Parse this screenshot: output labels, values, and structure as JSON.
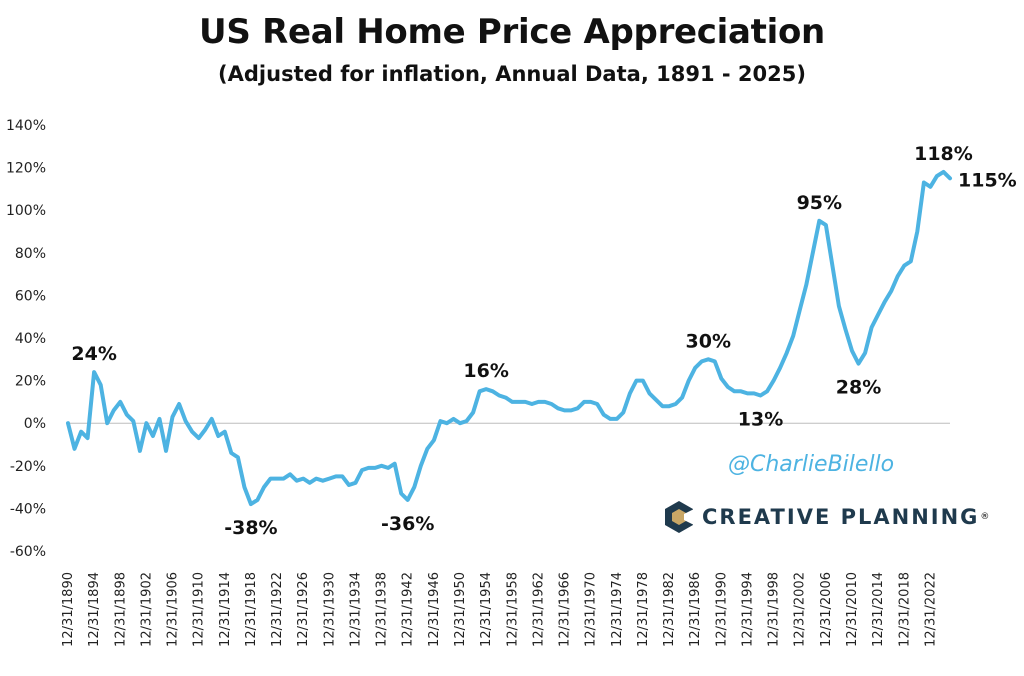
{
  "colors": {
    "line": "#4db3e2",
    "text": "#111111",
    "watermark": "#4db3e2",
    "brand_text": "#1f3a4d",
    "brand_gold": "#c9a766"
  },
  "watermark": "@CharlieBilello",
  "brand": {
    "name": "CREATIVE PLANNING",
    "trademark": "®",
    "logo_icon": "creative-planning-logo-icon"
  },
  "chart_data": {
    "type": "line",
    "title": "US Real Home Price Appreciation",
    "subtitle": "(Adjusted for inflation, Annual Data, 1891 - 2025)",
    "xlabel": "",
    "ylabel": "",
    "ylim": [
      -60,
      140
    ],
    "xlim": [
      1890,
      2025
    ],
    "grid": false,
    "y_ticks": [
      {
        "value": -60,
        "label": "-60%"
      },
      {
        "value": -40,
        "label": "-40%"
      },
      {
        "value": -20,
        "label": "-20%"
      },
      {
        "value": 0,
        "label": "0%"
      },
      {
        "value": 20,
        "label": "20%"
      },
      {
        "value": 40,
        "label": "40%"
      },
      {
        "value": 60,
        "label": "60%"
      },
      {
        "value": 80,
        "label": "80%"
      },
      {
        "value": 100,
        "label": "100%"
      },
      {
        "value": 120,
        "label": "120%"
      },
      {
        "value": 140,
        "label": "140%"
      }
    ],
    "x_ticks": [
      {
        "year": 1890,
        "label": "12/31/1890"
      },
      {
        "year": 1894,
        "label": "12/31/1894"
      },
      {
        "year": 1898,
        "label": "12/31/1898"
      },
      {
        "year": 1902,
        "label": "12/31/1902"
      },
      {
        "year": 1906,
        "label": "12/31/1906"
      },
      {
        "year": 1910,
        "label": "12/31/1910"
      },
      {
        "year": 1914,
        "label": "12/31/1914"
      },
      {
        "year": 1918,
        "label": "12/31/1918"
      },
      {
        "year": 1922,
        "label": "12/31/1922"
      },
      {
        "year": 1926,
        "label": "12/31/1926"
      },
      {
        "year": 1930,
        "label": "12/31/1930"
      },
      {
        "year": 1934,
        "label": "12/31/1934"
      },
      {
        "year": 1938,
        "label": "12/31/1938"
      },
      {
        "year": 1942,
        "label": "12/31/1942"
      },
      {
        "year": 1946,
        "label": "12/31/1946"
      },
      {
        "year": 1950,
        "label": "12/31/1950"
      },
      {
        "year": 1954,
        "label": "12/31/1954"
      },
      {
        "year": 1958,
        "label": "12/31/1958"
      },
      {
        "year": 1962,
        "label": "12/31/1962"
      },
      {
        "year": 1966,
        "label": "12/31/1966"
      },
      {
        "year": 1970,
        "label": "12/31/1970"
      },
      {
        "year": 1974,
        "label": "12/31/1974"
      },
      {
        "year": 1978,
        "label": "12/31/1978"
      },
      {
        "year": 1982,
        "label": "12/31/1982"
      },
      {
        "year": 1986,
        "label": "12/31/1986"
      },
      {
        "year": 1990,
        "label": "12/31/1990"
      },
      {
        "year": 1994,
        "label": "12/31/1994"
      },
      {
        "year": 1998,
        "label": "12/31/1998"
      },
      {
        "year": 2002,
        "label": "12/31/2002"
      },
      {
        "year": 2006,
        "label": "12/31/2006"
      },
      {
        "year": 2010,
        "label": "12/31/2010"
      },
      {
        "year": 2014,
        "label": "12/31/2014"
      },
      {
        "year": 2018,
        "label": "12/31/2018"
      },
      {
        "year": 2022,
        "label": "12/31/2022"
      }
    ],
    "series": [
      {
        "name": "US Real Home Price Appreciation",
        "points": [
          [
            1890,
            0
          ],
          [
            1891,
            -12
          ],
          [
            1892,
            -4
          ],
          [
            1893,
            -7
          ],
          [
            1894,
            24
          ],
          [
            1895,
            18
          ],
          [
            1896,
            0
          ],
          [
            1897,
            6
          ],
          [
            1898,
            10
          ],
          [
            1899,
            4
          ],
          [
            1900,
            1
          ],
          [
            1901,
            -13
          ],
          [
            1902,
            0
          ],
          [
            1903,
            -6
          ],
          [
            1904,
            2
          ],
          [
            1905,
            -13
          ],
          [
            1906,
            3
          ],
          [
            1907,
            9
          ],
          [
            1908,
            1
          ],
          [
            1909,
            -4
          ],
          [
            1910,
            -7
          ],
          [
            1911,
            -3
          ],
          [
            1912,
            2
          ],
          [
            1913,
            -6
          ],
          [
            1914,
            -4
          ],
          [
            1915,
            -14
          ],
          [
            1916,
            -16
          ],
          [
            1917,
            -30
          ],
          [
            1918,
            -38
          ],
          [
            1919,
            -36
          ],
          [
            1920,
            -30
          ],
          [
            1921,
            -26
          ],
          [
            1922,
            -26
          ],
          [
            1923,
            -26
          ],
          [
            1924,
            -24
          ],
          [
            1925,
            -27
          ],
          [
            1926,
            -26
          ],
          [
            1927,
            -28
          ],
          [
            1928,
            -26
          ],
          [
            1929,
            -27
          ],
          [
            1930,
            -26
          ],
          [
            1931,
            -25
          ],
          [
            1932,
            -25
          ],
          [
            1933,
            -29
          ],
          [
            1934,
            -28
          ],
          [
            1935,
            -22
          ],
          [
            1936,
            -21
          ],
          [
            1937,
            -21
          ],
          [
            1938,
            -20
          ],
          [
            1939,
            -21
          ],
          [
            1940,
            -19
          ],
          [
            1941,
            -33
          ],
          [
            1942,
            -36
          ],
          [
            1943,
            -30
          ],
          [
            1944,
            -20
          ],
          [
            1945,
            -12
          ],
          [
            1946,
            -8
          ],
          [
            1947,
            1
          ],
          [
            1948,
            0
          ],
          [
            1949,
            2
          ],
          [
            1950,
            0
          ],
          [
            1951,
            1
          ],
          [
            1952,
            5
          ],
          [
            1953,
            15
          ],
          [
            1954,
            16
          ],
          [
            1955,
            15
          ],
          [
            1956,
            13
          ],
          [
            1957,
            12
          ],
          [
            1958,
            10
          ],
          [
            1959,
            10
          ],
          [
            1960,
            10
          ],
          [
            1961,
            9
          ],
          [
            1962,
            10
          ],
          [
            1963,
            10
          ],
          [
            1964,
            9
          ],
          [
            1965,
            7
          ],
          [
            1966,
            6
          ],
          [
            1967,
            6
          ],
          [
            1968,
            7
          ],
          [
            1969,
            10
          ],
          [
            1970,
            10
          ],
          [
            1971,
            9
          ],
          [
            1972,
            4
          ],
          [
            1973,
            2
          ],
          [
            1974,
            2
          ],
          [
            1975,
            5
          ],
          [
            1976,
            14
          ],
          [
            1977,
            20
          ],
          [
            1978,
            20
          ],
          [
            1979,
            14
          ],
          [
            1980,
            11
          ],
          [
            1981,
            8
          ],
          [
            1982,
            8
          ],
          [
            1983,
            9
          ],
          [
            1984,
            12
          ],
          [
            1985,
            20
          ],
          [
            1986,
            26
          ],
          [
            1987,
            29
          ],
          [
            1988,
            30
          ],
          [
            1989,
            29
          ],
          [
            1990,
            21
          ],
          [
            1991,
            17
          ],
          [
            1992,
            15
          ],
          [
            1993,
            15
          ],
          [
            1994,
            14
          ],
          [
            1995,
            14
          ],
          [
            1996,
            13
          ],
          [
            1997,
            15
          ],
          [
            1998,
            20
          ],
          [
            1999,
            26
          ],
          [
            2000,
            33
          ],
          [
            2001,
            41
          ],
          [
            2002,
            53
          ],
          [
            2003,
            65
          ],
          [
            2004,
            80
          ],
          [
            2005,
            95
          ],
          [
            2006,
            93
          ],
          [
            2007,
            74
          ],
          [
            2008,
            55
          ],
          [
            2009,
            44
          ],
          [
            2010,
            34
          ],
          [
            2011,
            28
          ],
          [
            2012,
            33
          ],
          [
            2013,
            45
          ],
          [
            2014,
            51
          ],
          [
            2015,
            57
          ],
          [
            2016,
            62
          ],
          [
            2017,
            69
          ],
          [
            2018,
            74
          ],
          [
            2019,
            76
          ],
          [
            2020,
            90
          ],
          [
            2021,
            113
          ],
          [
            2022,
            111
          ],
          [
            2023,
            116
          ],
          [
            2024,
            118
          ],
          [
            2025,
            115
          ]
        ]
      }
    ],
    "annotations": [
      {
        "year": 1894,
        "value": 24,
        "label": "24%",
        "position": "above"
      },
      {
        "year": 1918,
        "value": -38,
        "label": "-38%",
        "position": "below"
      },
      {
        "year": 1942,
        "value": -36,
        "label": "-36%",
        "position": "below"
      },
      {
        "year": 1954,
        "value": 16,
        "label": "16%",
        "position": "above"
      },
      {
        "year": 1988,
        "value": 30,
        "label": "30%",
        "position": "above"
      },
      {
        "year": 1996,
        "value": 13,
        "label": "13%",
        "position": "below"
      },
      {
        "year": 2005,
        "value": 95,
        "label": "95%",
        "position": "above"
      },
      {
        "year": 2011,
        "value": 28,
        "label": "28%",
        "position": "below"
      },
      {
        "year": 2024,
        "value": 118,
        "label": "118%",
        "position": "above"
      },
      {
        "year": 2025,
        "value": 115,
        "label": "115%",
        "position": "right"
      }
    ]
  }
}
